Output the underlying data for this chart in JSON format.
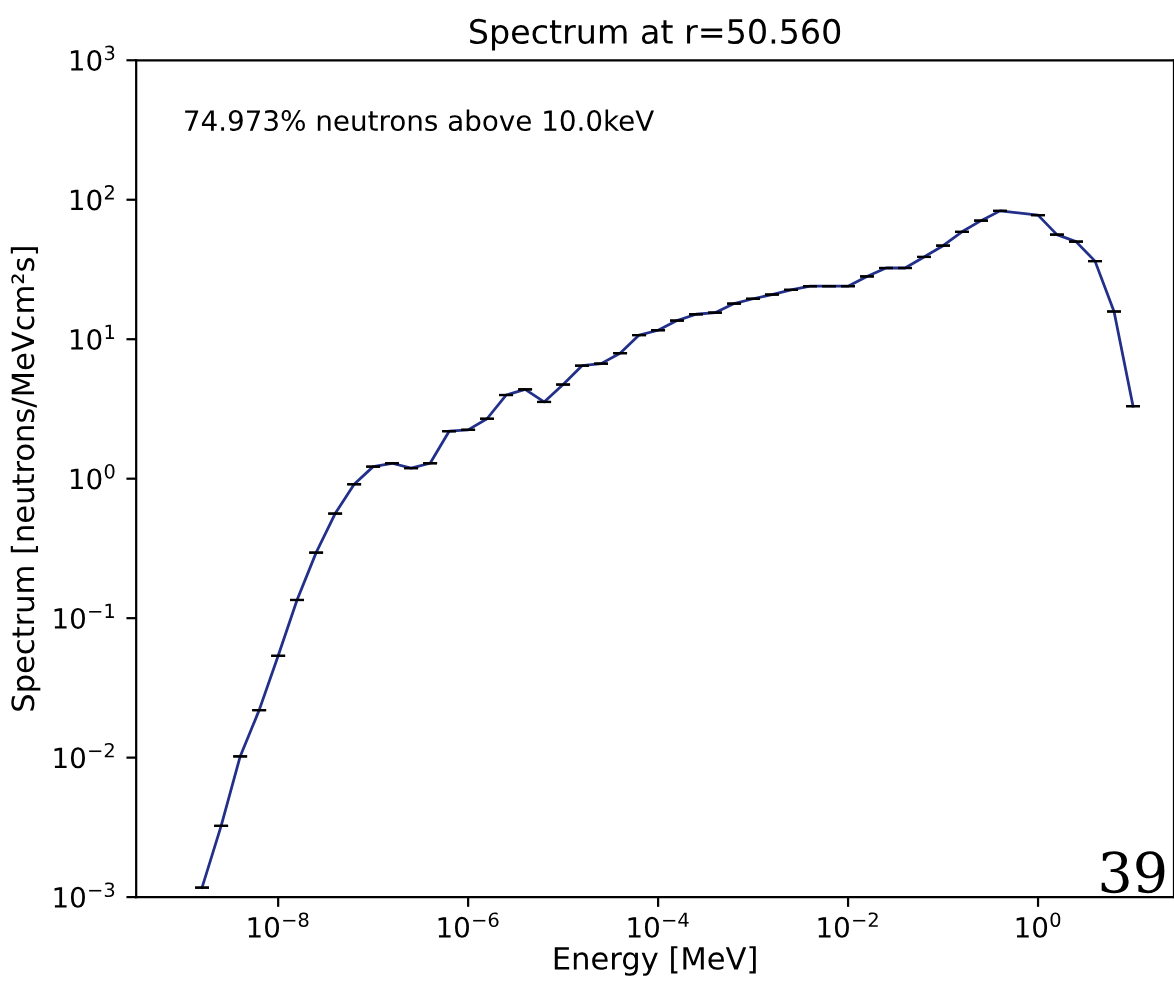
{
  "chart_data": {
    "type": "line",
    "title": "Spectrum at r=50.560",
    "xlabel": "Energy [MeV]",
    "ylabel": "Spectrum [neutrons/MeVcm²s]",
    "annotations": [
      "74.973% neutrons above 10.0keV",
      "39"
    ],
    "log": "xy",
    "grid": false,
    "legend": false,
    "marker": "none",
    "line_style": "solid",
    "xlim": [
      3.2e-10,
      27
    ],
    "ylim": [
      0.001,
      1000
    ],
    "xticks": [
      {
        "value": 1e-08,
        "label": "10$^{−8}$"
      },
      {
        "value": 1e-06,
        "label": "10$^{−6}$"
      },
      {
        "value": 0.0001,
        "label": "10$^{−4}$"
      },
      {
        "value": 0.01,
        "label": "10$^{−2}$"
      },
      {
        "value": 1,
        "label": "10$^{0}$"
      }
    ],
    "yticks": [
      {
        "value": 0.001,
        "label": "10$^{−3}$"
      },
      {
        "value": 0.01,
        "label": "10$^{−2}$"
      },
      {
        "value": 0.1,
        "label": "10$^{−1}$"
      },
      {
        "value": 1,
        "label": "10$^{0}$"
      },
      {
        "value": 10,
        "label": "10$^{1}$"
      },
      {
        "value": 100,
        "label": "10$^{2}$"
      },
      {
        "value": 1000,
        "label": "10$^{3}$"
      }
    ],
    "series": [
      {
        "color": "#22308a",
        "x": [
          1.58e-09,
          2.51e-09,
          3.98e-09,
          6.31e-09,
          1e-08,
          1.58e-08,
          2.51e-08,
          3.98e-08,
          6.31e-08,
          1e-07,
          1.58e-07,
          2.51e-07,
          3.98e-07,
          6.31e-07,
          1e-06,
          1.58e-06,
          2.51e-06,
          3.98e-06,
          6.31e-06,
          1e-05,
          1.58e-05,
          2.51e-05,
          3.98e-05,
          6.31e-05,
          0.0001,
          0.000158,
          0.000251,
          0.000398,
          0.000631,
          0.001,
          0.00158,
          0.00251,
          0.00398,
          0.00631,
          0.01,
          0.0158,
          0.0251,
          0.0398,
          0.0631,
          0.1,
          0.158,
          0.251,
          0.398,
          1.0,
          1.58,
          2.51,
          3.98,
          6.31,
          10
        ],
        "values": [
          0.00117,
          0.00324,
          0.0102,
          0.0219,
          0.0537,
          0.135,
          0.295,
          0.562,
          0.912,
          1.22,
          1.29,
          1.19,
          1.29,
          2.19,
          2.24,
          2.69,
          3.98,
          4.37,
          3.55,
          4.73,
          6.46,
          6.68,
          7.94,
          10.7,
          11.6,
          13.6,
          15.1,
          15.5,
          18.0,
          19.5,
          20.9,
          22.6,
          24.0,
          24.0,
          24.0,
          28.2,
          32.4,
          32.4,
          38.9,
          46.8,
          58.9,
          70.8,
          83.2,
          77.6,
          56.2,
          50.1,
          36.3,
          15.8,
          3.31
        ],
        "errors": [
          0,
          0,
          0,
          0,
          0,
          0,
          0,
          0,
          0,
          0,
          0,
          0,
          0,
          0,
          0,
          0,
          0,
          0,
          0,
          0,
          0,
          0,
          0,
          0,
          0,
          0,
          0,
          0,
          0,
          0,
          0,
          0,
          0,
          0,
          0,
          0,
          0,
          0,
          0,
          0,
          0,
          0,
          0,
          0,
          0,
          0,
          0,
          0,
          0
        ]
      }
    ]
  }
}
